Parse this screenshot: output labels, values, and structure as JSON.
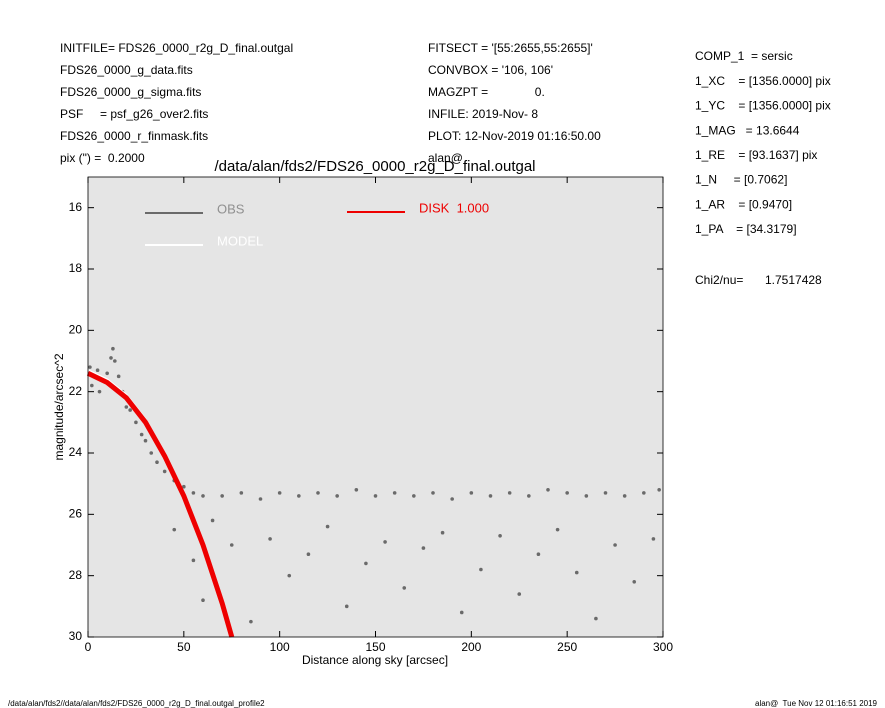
{
  "header": {
    "left": [
      "INITFILE= FDS26_0000_r2g_D_final.outgal",
      "FDS26_0000_g_data.fits",
      "FDS26_0000_g_sigma.fits",
      "PSF     = psf_g26_over2.fits",
      "FDS26_0000_r_finmask.fits",
      "pix (\") =  0.2000"
    ],
    "middle": [
      "FITSECT = '[55:2655,55:2655]'",
      "CONVBOX = '106, 106'",
      "MAGZPT =              0.",
      "INFILE: 2019-Nov- 8",
      "PLOT: 12-Nov-2019 01:16:50.00",
      "alan@"
    ],
    "right": [
      "COMP_1  = sersic",
      "1_XC    = [1356.0000] pix",
      "1_YC    = [1356.0000] pix",
      "1_MAG   = 13.6644",
      "1_RE    = [93.1637] pix",
      "1_N     = [0.7062]",
      "1_AR    = [0.9470]",
      "1_PA    = [34.3179]"
    ],
    "chi2_label": "Chi2/nu=",
    "chi2_value": "1.7517428"
  },
  "footer": {
    "left": "/data/alan/fds2//data/alan/fds2/FDS26_0000_r2g_D_final.outgal_profile2",
    "right": "alan@  Tue Nov 12 01:16:51 2019"
  },
  "chart_data": {
    "type": "scatter",
    "title": "/data/alan/fds2/FDS26_0000_r2g_D_final.outgal",
    "x_label": "Distance along sky [arcsec]",
    "y_label": "magnitude/arcsec^2",
    "xlim": [
      0,
      300
    ],
    "xticks": [
      0,
      50,
      100,
      150,
      200,
      250,
      300
    ],
    "ylim": [
      30,
      15
    ],
    "yticks": [
      16,
      18,
      20,
      22,
      24,
      26,
      28,
      30
    ],
    "background": "#e5e5e5",
    "series": [
      {
        "name": "OBS",
        "color": "#6a6a6a",
        "style": "points",
        "x": [
          1,
          2,
          3,
          5,
          6,
          8,
          10,
          12,
          13,
          14,
          16,
          18,
          20,
          22,
          25,
          28,
          30,
          33,
          36,
          40,
          45,
          50,
          55,
          60,
          70,
          80,
          90,
          100,
          110,
          120,
          130,
          140,
          150,
          160,
          170,
          180,
          190,
          200,
          210,
          220,
          230,
          240,
          250,
          260,
          270,
          280,
          290,
          298,
          45,
          55,
          60,
          65,
          75,
          85,
          95,
          105,
          115,
          125,
          135,
          145,
          155,
          165,
          175,
          185,
          195,
          205,
          215,
          225,
          235,
          245,
          255,
          265,
          275,
          285,
          295
        ],
        "values": [
          21.2,
          21.8,
          21.5,
          21.3,
          22.0,
          21.6,
          21.4,
          20.9,
          20.6,
          21.0,
          21.5,
          22.0,
          22.5,
          22.6,
          23.0,
          23.4,
          23.6,
          24.0,
          24.3,
          24.6,
          24.9,
          25.1,
          25.3,
          25.4,
          25.4,
          25.3,
          25.5,
          25.3,
          25.4,
          25.3,
          25.4,
          25.2,
          25.4,
          25.3,
          25.4,
          25.3,
          25.5,
          25.3,
          25.4,
          25.3,
          25.4,
          25.2,
          25.3,
          25.4,
          25.3,
          25.4,
          25.3,
          25.2,
          26.5,
          27.5,
          28.8,
          26.2,
          27.0,
          29.5,
          26.8,
          28.0,
          27.3,
          26.4,
          29.0,
          27.6,
          26.9,
          28.4,
          27.1,
          26.6,
          29.2,
          27.8,
          26.7,
          28.6,
          27.3,
          26.5,
          27.9,
          29.4,
          27.0,
          28.2,
          26.8
        ]
      },
      {
        "name": "MODEL",
        "color": "#ffffff",
        "style": "line",
        "x": [
          0,
          10,
          20,
          30,
          40,
          50,
          60,
          70,
          75
        ],
        "values": [
          21.3,
          21.6,
          22.1,
          22.9,
          24.0,
          25.3,
          26.9,
          28.8,
          29.9
        ]
      },
      {
        "name": "DISK  1.000",
        "color": "#ee0000",
        "style": "line",
        "x": [
          0,
          10,
          20,
          30,
          40,
          50,
          60,
          70,
          75
        ],
        "values": [
          21.4,
          21.7,
          22.2,
          23.0,
          24.1,
          25.4,
          27.0,
          28.9,
          30.0
        ]
      }
    ]
  }
}
